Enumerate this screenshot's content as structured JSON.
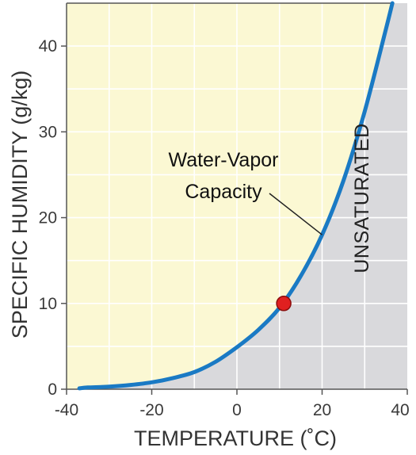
{
  "chart_data": {
    "type": "line",
    "xlabel": "TEMPERATURE (˚C)",
    "ylabel": "SPECIFIC HUMIDITY (g/kg)",
    "xlim": [
      -40,
      40
    ],
    "ylim": [
      0,
      45
    ],
    "x_ticks": [
      -40,
      -20,
      0,
      20,
      40
    ],
    "y_ticks": [
      0,
      10,
      20,
      30,
      40
    ],
    "grid": true,
    "series": [
      {
        "x": [
          -37,
          -35,
          -30,
          -25,
          -20,
          -15,
          -10,
          -5,
          0,
          5,
          10,
          15,
          20,
          25,
          30,
          35,
          36.5
        ],
        "y": [
          0.1,
          0.2,
          0.3,
          0.5,
          0.8,
          1.3,
          2.0,
          3.2,
          4.9,
          6.9,
          9.5,
          13.2,
          18.0,
          24.3,
          32.4,
          42.0,
          45.0
        ],
        "color": "#1a7ac4"
      }
    ],
    "point": {
      "x": 11,
      "y": 10,
      "color": "#e02020"
    },
    "annotations": [
      {
        "lines": [
          "Water-Vapor",
          "Capacity"
        ],
        "target_x": 20,
        "target_y": 18
      }
    ],
    "regions": [
      {
        "label": "UNSATURATED",
        "side": "below-right",
        "fill": "#d9d9dc"
      },
      {
        "label": "",
        "side": "above-left",
        "fill": "#fbf8d3"
      }
    ]
  }
}
